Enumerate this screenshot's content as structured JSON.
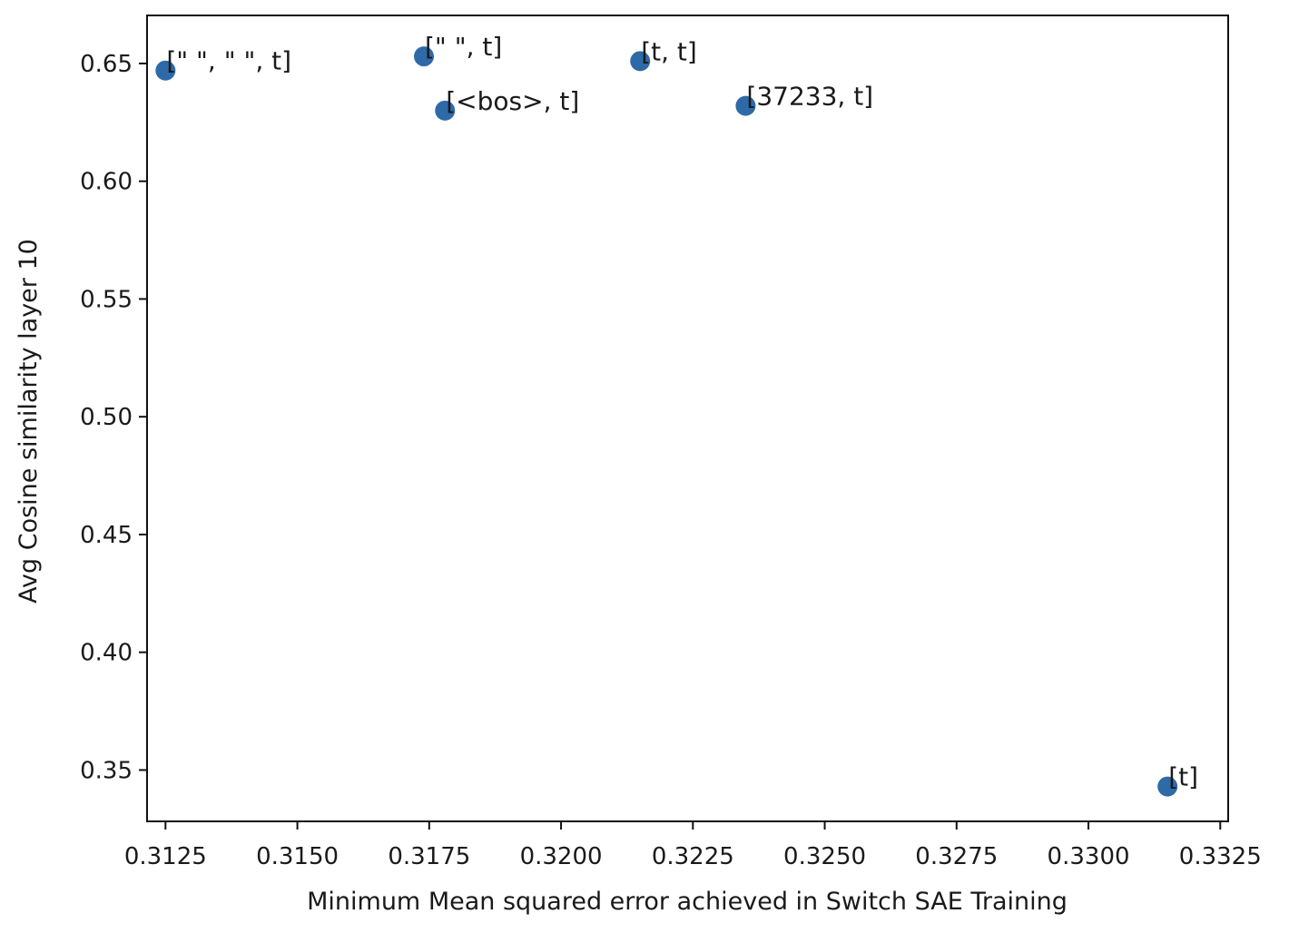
{
  "chart_data": {
    "type": "scatter",
    "title": "",
    "xlabel": "Minimum Mean squared error achieved in Switch SAE Training",
    "ylabel": "Avg Cosine similarity layer 10",
    "xlim": [
      0.31215,
      0.33265
    ],
    "ylim": [
      0.3282,
      0.6704
    ],
    "xticks": [
      "0.3125",
      "0.3150",
      "0.3175",
      "0.3200",
      "0.3225",
      "0.3250",
      "0.3275",
      "0.3300",
      "0.3325"
    ],
    "yticks": [
      "0.35",
      "0.40",
      "0.45",
      "0.50",
      "0.55",
      "0.60",
      "0.65"
    ],
    "grid": false,
    "marker_color": "#2e6aa8",
    "points": [
      {
        "label": "[\" \", \" \", t]",
        "x": 0.3125,
        "y": 0.647
      },
      {
        "label": "[\" \", t]",
        "x": 0.3174,
        "y": 0.653
      },
      {
        "label": "[<bos>, t]",
        "x": 0.3178,
        "y": 0.63
      },
      {
        "label": "[t, t]",
        "x": 0.3215,
        "y": 0.651
      },
      {
        "label": "[37233, t]",
        "x": 0.3235,
        "y": 0.632
      },
      {
        "label": "[t]",
        "x": 0.3315,
        "y": 0.343
      }
    ]
  }
}
